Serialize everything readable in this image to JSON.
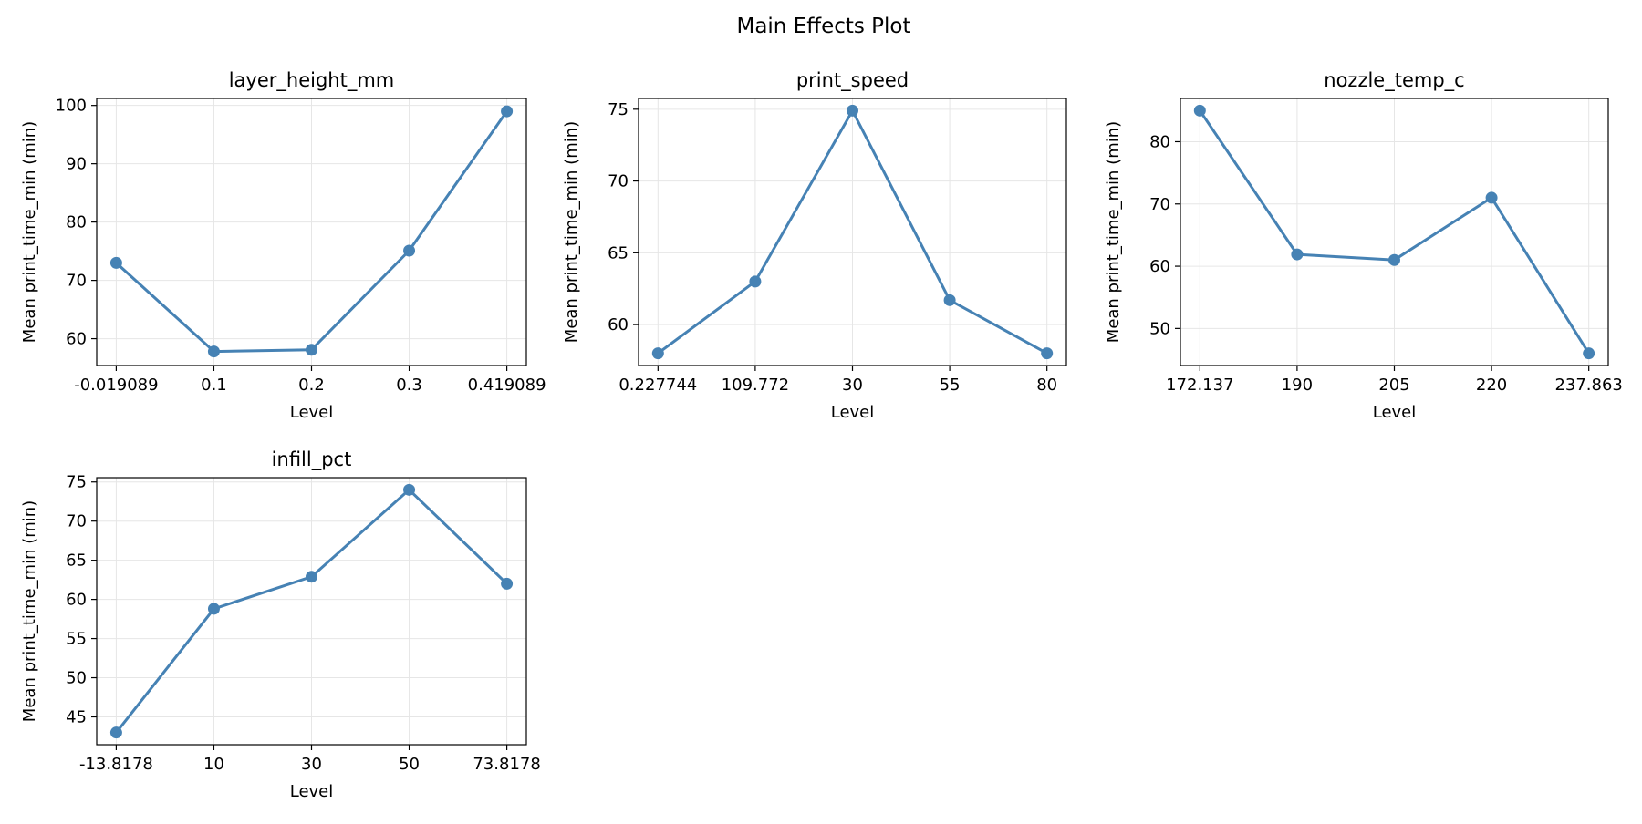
{
  "figure": {
    "title": "Main Effects Plot"
  },
  "style": {
    "line_color": "#4682B4",
    "grid_color": "#e6e6e6",
    "axis_color": "#000000"
  },
  "chart_data": [
    {
      "type": "line",
      "title": "layer_height_mm",
      "xlabel": "Level",
      "ylabel": "Mean print_time_min (min)",
      "categories": [
        "-0.019089",
        "0.1",
        "0.2",
        "0.3",
        "0.419089"
      ],
      "values": [
        73.0,
        57.8,
        58.1,
        75.1,
        99.0
      ],
      "ylim": [
        55.4,
        101.2
      ],
      "yticks": [
        60,
        70,
        80,
        90,
        100
      ],
      "grid": true
    },
    {
      "type": "line",
      "title": "print_speed",
      "xlabel": "Level",
      "ylabel": "Mean print_time_min (min)",
      "categories": [
        "0.227744",
        "109.772",
        "30",
        "55",
        "80"
      ],
      "values": [
        58.0,
        63.0,
        74.9,
        61.7,
        58.0
      ],
      "ylim": [
        57.15,
        75.75
      ],
      "yticks": [
        60,
        65,
        70,
        75
      ],
      "grid": true
    },
    {
      "type": "line",
      "title": "nozzle_temp_c",
      "xlabel": "Level",
      "ylabel": "Mean print_time_min (min)",
      "categories": [
        "172.137",
        "190",
        "205",
        "220",
        "237.863"
      ],
      "values": [
        85.0,
        61.9,
        61.0,
        71.0,
        46.0
      ],
      "ylim": [
        44.05,
        86.95
      ],
      "yticks": [
        50,
        60,
        70,
        80
      ],
      "grid": true
    },
    {
      "type": "line",
      "title": "infill_pct",
      "xlabel": "Level",
      "ylabel": "Mean print_time_min (min)",
      "categories": [
        "-13.8178",
        "10",
        "30",
        "50",
        "73.8178"
      ],
      "values": [
        43.0,
        58.8,
        62.9,
        74.0,
        62.0
      ],
      "ylim": [
        41.45,
        75.55
      ],
      "yticks": [
        45,
        50,
        55,
        60,
        65,
        70,
        75
      ],
      "grid": true
    }
  ]
}
